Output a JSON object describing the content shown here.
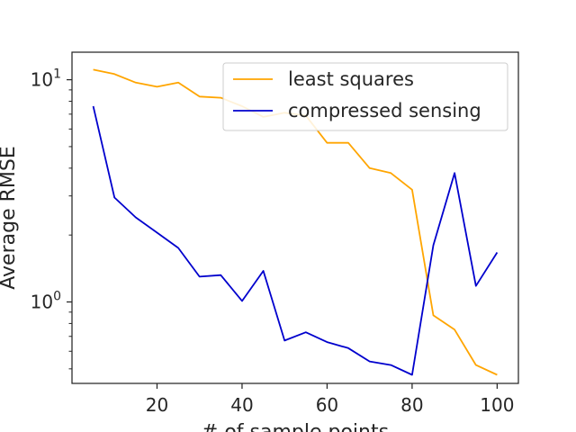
{
  "chart_data": {
    "type": "line",
    "title": "",
    "xlabel": "# of sample points",
    "ylabel": "Average RMSE",
    "xlim": [
      0,
      105
    ],
    "ylim": [
      0.43,
      13.3
    ],
    "yscale": "log",
    "grid": false,
    "legend_position": "top-right",
    "x_ticks": [
      {
        "value": 20,
        "label": "20"
      },
      {
        "value": 40,
        "label": "40"
      },
      {
        "value": 60,
        "label": "60"
      },
      {
        "value": 80,
        "label": "80"
      },
      {
        "value": 100,
        "label": "100"
      }
    ],
    "y_ticks": [
      {
        "value": 1,
        "label": "10^0",
        "base": "10",
        "exp": "0"
      },
      {
        "value": 10,
        "label": "10^1",
        "base": "10",
        "exp": "1"
      }
    ],
    "x": [
      5,
      10,
      15,
      20,
      25,
      30,
      35,
      40,
      45,
      50,
      55,
      60,
      65,
      70,
      75,
      80,
      85,
      90,
      95,
      100
    ],
    "series": [
      {
        "name": "least squares",
        "color": "#ffa500",
        "values": [
          11.1,
          10.6,
          9.7,
          9.3,
          9.7,
          8.4,
          8.3,
          7.6,
          6.8,
          7.1,
          6.9,
          5.2,
          5.2,
          4.0,
          3.8,
          3.2,
          0.87,
          0.75,
          0.52,
          0.47
        ]
      },
      {
        "name": "compressed sensing",
        "color": "#0000cd",
        "values": [
          7.6,
          2.95,
          2.4,
          2.05,
          1.75,
          1.3,
          1.32,
          1.01,
          1.38,
          0.67,
          0.73,
          0.66,
          0.62,
          0.54,
          0.52,
          0.47,
          1.8,
          3.8,
          1.18,
          1.67
        ]
      }
    ]
  }
}
